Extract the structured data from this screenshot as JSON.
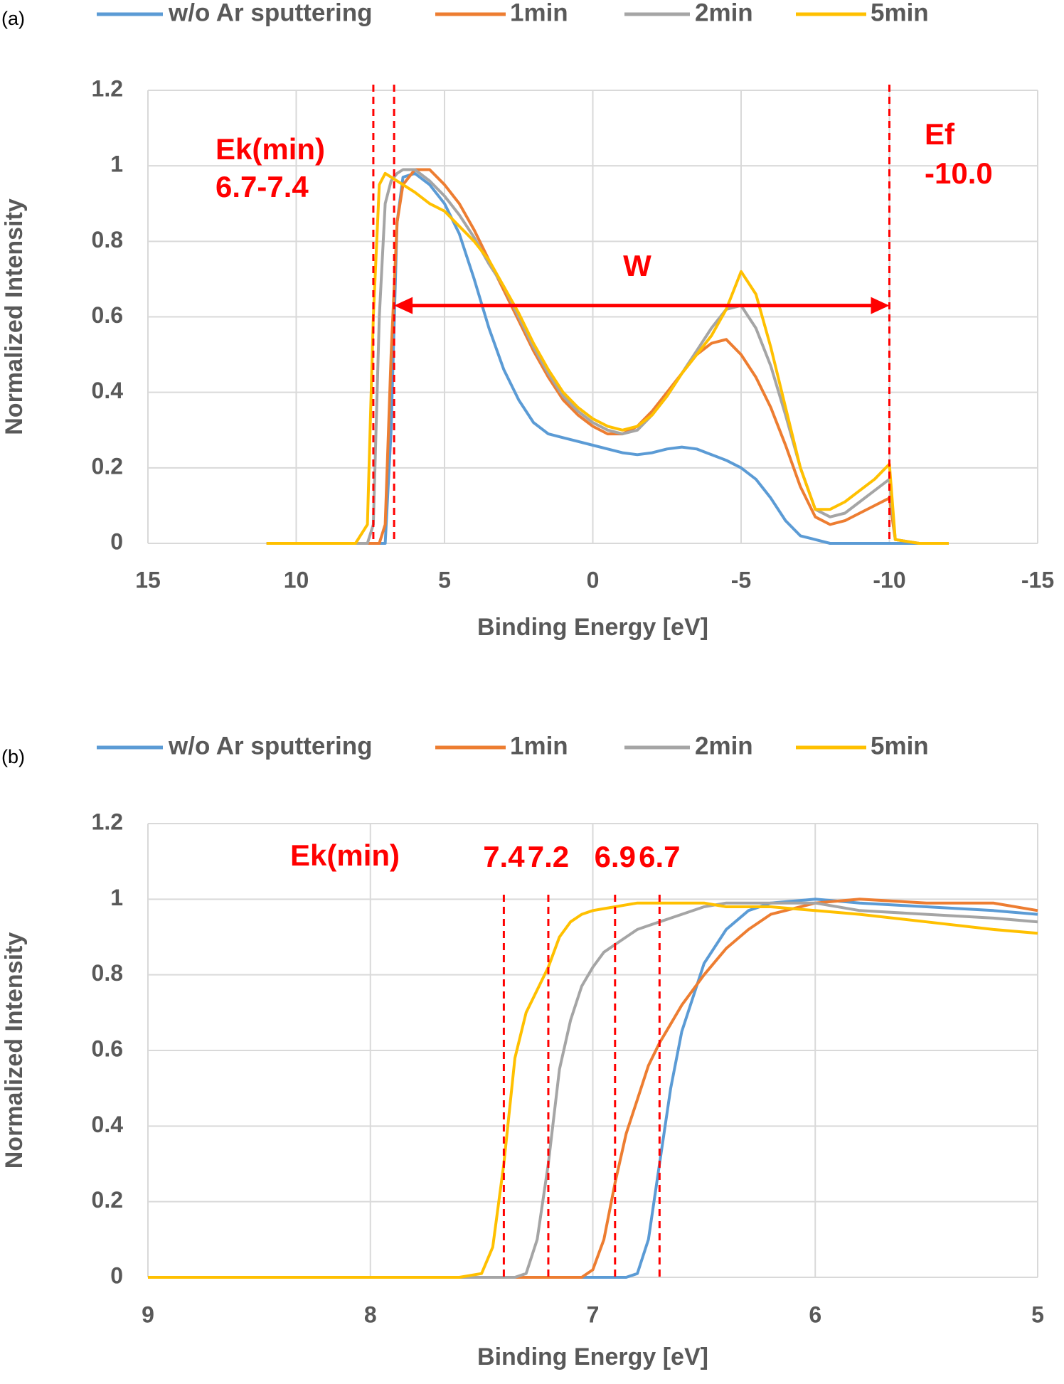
{
  "chart_data": [
    {
      "type": "line",
      "panel_label": "(a)",
      "x_label": "Binding Energy [eV]",
      "y_label": "Normalized Intensity",
      "xlim": [
        15,
        -15
      ],
      "xticks": [
        15,
        10,
        5,
        0,
        -5,
        -10,
        -15
      ],
      "ylim": [
        0,
        1.2
      ],
      "yticks": [
        0,
        0.2,
        0.4,
        0.6,
        0.8,
        1,
        1.2
      ],
      "grid": true,
      "legend": "top",
      "x": [
        11,
        8,
        7.6,
        7.4,
        7.2,
        7,
        6.8,
        6.6,
        6.4,
        6,
        5.5,
        5,
        4.5,
        4,
        3.5,
        3,
        2.5,
        2,
        1.5,
        1,
        0.5,
        0,
        -0.5,
        -1,
        -1.5,
        -2,
        -2.5,
        -3,
        -3.5,
        -4,
        -4.5,
        -5,
        -5.5,
        -6,
        -6.5,
        -7,
        -7.5,
        -8,
        -8.5,
        -9,
        -9.5,
        -10,
        -10.2,
        -11,
        -12
      ],
      "series": [
        {
          "name": "w/o Ar sputtering",
          "color": "#5b9bd5",
          "values": [
            0,
            0,
            0,
            0,
            0,
            0,
            0.3,
            0.85,
            0.97,
            0.98,
            0.95,
            0.9,
            0.82,
            0.7,
            0.57,
            0.46,
            0.38,
            0.32,
            0.29,
            0.28,
            0.27,
            0.26,
            0.25,
            0.24,
            0.235,
            0.24,
            0.25,
            0.255,
            0.25,
            0.235,
            0.22,
            0.2,
            0.17,
            0.12,
            0.06,
            0.02,
            0.01,
            0,
            0,
            0,
            0,
            0,
            0,
            0,
            0
          ]
        },
        {
          "name": "1min",
          "color": "#ed7d31",
          "values": [
            0,
            0,
            0,
            0,
            0,
            0.05,
            0.5,
            0.85,
            0.95,
            0.99,
            0.99,
            0.95,
            0.9,
            0.83,
            0.75,
            0.67,
            0.59,
            0.51,
            0.44,
            0.38,
            0.34,
            0.31,
            0.29,
            0.29,
            0.31,
            0.35,
            0.4,
            0.45,
            0.5,
            0.53,
            0.54,
            0.5,
            0.44,
            0.36,
            0.26,
            0.15,
            0.07,
            0.05,
            0.06,
            0.08,
            0.1,
            0.12,
            0.01,
            0,
            0
          ]
        },
        {
          "name": "2min",
          "color": "#a5a5a5",
          "values": [
            0,
            0,
            0,
            0.05,
            0.6,
            0.9,
            0.96,
            0.98,
            0.99,
            0.99,
            0.96,
            0.92,
            0.87,
            0.81,
            0.74,
            0.68,
            0.6,
            0.52,
            0.45,
            0.39,
            0.35,
            0.32,
            0.3,
            0.29,
            0.3,
            0.34,
            0.39,
            0.45,
            0.51,
            0.57,
            0.62,
            0.63,
            0.57,
            0.47,
            0.34,
            0.2,
            0.09,
            0.07,
            0.08,
            0.11,
            0.14,
            0.17,
            0.01,
            0,
            0
          ]
        },
        {
          "name": "5min",
          "color": "#ffc000",
          "values": [
            0,
            0,
            0.05,
            0.6,
            0.95,
            0.98,
            0.97,
            0.96,
            0.95,
            0.93,
            0.9,
            0.88,
            0.84,
            0.8,
            0.75,
            0.68,
            0.61,
            0.53,
            0.46,
            0.4,
            0.36,
            0.33,
            0.31,
            0.3,
            0.31,
            0.34,
            0.39,
            0.45,
            0.5,
            0.55,
            0.62,
            0.72,
            0.66,
            0.52,
            0.36,
            0.2,
            0.09,
            0.09,
            0.11,
            0.14,
            0.17,
            0.21,
            0.01,
            0,
            0
          ]
        }
      ],
      "marker_lines": [
        7.4,
        6.7,
        -10
      ],
      "marker_color": "#ff0000",
      "annotations": [
        "Ek(min)",
        "6.7-7.4",
        "Ef",
        "-10.0",
        "W"
      ],
      "arrow": {
        "x": [
          6.7,
          -10
        ],
        "y": 0.63
      }
    },
    {
      "type": "line",
      "panel_label": "(b)",
      "x_label": "Binding Energy [eV]",
      "y_label": "Normalized Intensity",
      "xlim": [
        9,
        5
      ],
      "xticks": [
        9,
        8,
        7,
        6,
        5
      ],
      "ylim": [
        0,
        1.2
      ],
      "yticks": [
        0,
        0.2,
        0.4,
        0.6,
        0.8,
        1,
        1.2
      ],
      "grid": true,
      "legend": "top",
      "x": [
        9,
        8,
        7.6,
        7.5,
        7.45,
        7.4,
        7.35,
        7.3,
        7.25,
        7.2,
        7.15,
        7.1,
        7.05,
        7,
        6.95,
        6.9,
        6.85,
        6.8,
        6.75,
        6.7,
        6.65,
        6.6,
        6.5,
        6.4,
        6.3,
        6.2,
        6,
        5.8,
        5.5,
        5.2,
        5
      ],
      "series": [
        {
          "name": "w/o Ar sputtering",
          "color": "#5b9bd5",
          "values": [
            0,
            0,
            0,
            0,
            0,
            0,
            0,
            0,
            0,
            0,
            0,
            0,
            0,
            0,
            0,
            0,
            0,
            0.01,
            0.1,
            0.3,
            0.5,
            0.65,
            0.83,
            0.92,
            0.97,
            0.99,
            1,
            0.99,
            0.98,
            0.97,
            0.96
          ]
        },
        {
          "name": "1min",
          "color": "#ed7d31",
          "values": [
            0,
            0,
            0,
            0,
            0,
            0,
            0,
            0,
            0,
            0,
            0,
            0,
            0,
            0.02,
            0.1,
            0.25,
            0.38,
            0.47,
            0.56,
            0.62,
            0.67,
            0.72,
            0.8,
            0.87,
            0.92,
            0.96,
            0.99,
            1,
            0.99,
            0.99,
            0.97
          ]
        },
        {
          "name": "2min",
          "color": "#a5a5a5",
          "values": [
            0,
            0,
            0,
            0,
            0,
            0,
            0,
            0.01,
            0.1,
            0.3,
            0.55,
            0.68,
            0.77,
            0.82,
            0.86,
            0.88,
            0.9,
            0.92,
            0.93,
            0.94,
            0.95,
            0.96,
            0.98,
            0.99,
            0.99,
            0.99,
            0.99,
            0.97,
            0.96,
            0.95,
            0.94
          ]
        },
        {
          "name": "5min",
          "color": "#ffc000",
          "values": [
            0,
            0,
            0,
            0.01,
            0.08,
            0.3,
            0.58,
            0.7,
            0.76,
            0.82,
            0.9,
            0.94,
            0.96,
            0.97,
            0.975,
            0.98,
            0.985,
            0.99,
            0.99,
            0.99,
            0.99,
            0.99,
            0.99,
            0.98,
            0.98,
            0.98,
            0.97,
            0.96,
            0.94,
            0.92,
            0.91
          ]
        }
      ],
      "marker_lines": [
        7.4,
        7.2,
        6.9,
        6.7
      ],
      "marker_color": "#ff0000",
      "annotations": [
        "Ek(min)"
      ]
    }
  ]
}
